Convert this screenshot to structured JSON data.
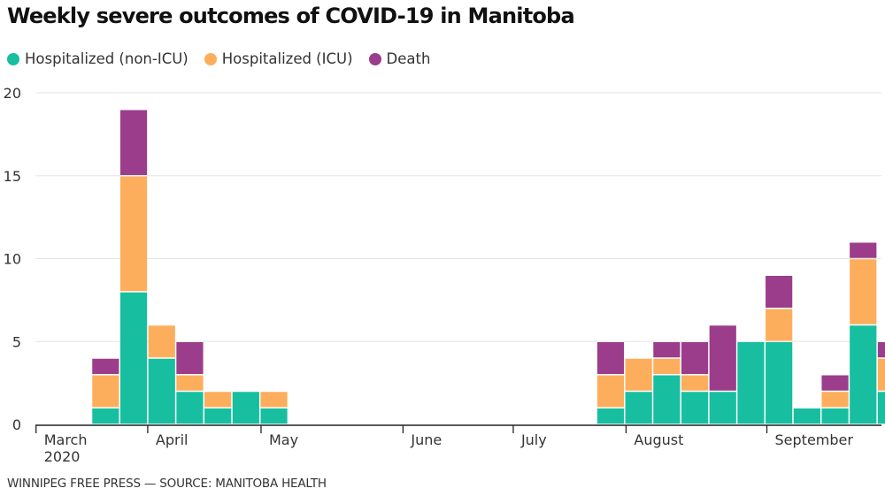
{
  "chart_data": {
    "type": "bar",
    "stacked": true,
    "title": "Weekly severe outcomes of COVID-19 in Manitoba",
    "xlabel": "",
    "ylabel": "",
    "ylim": [
      0,
      20
    ],
    "yticks": [
      0,
      5,
      10,
      15,
      20
    ],
    "grid": true,
    "legend_position": "top-left",
    "x_tick_labels": [
      {
        "label": "March",
        "sublabel": "2020",
        "week_index": -1.98
      },
      {
        "label": "April",
        "sublabel": "",
        "week_index": 2.0
      },
      {
        "label": "May",
        "sublabel": "",
        "week_index": 6.04
      },
      {
        "label": "June",
        "sublabel": "",
        "week_index": 11.1
      },
      {
        "label": "July",
        "sublabel": "",
        "week_index": 15.03
      },
      {
        "label": "August",
        "sublabel": "",
        "week_index": 19.05
      },
      {
        "label": "September",
        "sublabel": "",
        "week_index": 24.07
      }
    ],
    "week_count": 29,
    "series": [
      {
        "name": "Hospitalized (non-ICU)",
        "color": "#17bfa0",
        "values": [
          1,
          8,
          4,
          2,
          1,
          2,
          1,
          0,
          0,
          0,
          0,
          0,
          0,
          0,
          0,
          0,
          0,
          0,
          1,
          2,
          3,
          2,
          2,
          5,
          5,
          1,
          1,
          6,
          2
        ]
      },
      {
        "name": "Hospitalized (ICU)",
        "color": "#fdae5c",
        "values": [
          2,
          7,
          2,
          1,
          1,
          0,
          1,
          0,
          0,
          0,
          0,
          0,
          0,
          0,
          0,
          0,
          0,
          0,
          2,
          2,
          1,
          1,
          0,
          0,
          2,
          0,
          1,
          4,
          2
        ]
      },
      {
        "name": "Death",
        "color": "#9b3d8b",
        "values": [
          1,
          4,
          0,
          2,
          0,
          0,
          0,
          0,
          0,
          0,
          0,
          0,
          0,
          0,
          0,
          0,
          0,
          0,
          2,
          0,
          1,
          2,
          4,
          0,
          2,
          0,
          1,
          1,
          1
        ]
      }
    ]
  },
  "legend": {
    "items": [
      {
        "label": "Hospitalized (non-ICU)",
        "color": "#17bfa0"
      },
      {
        "label": "Hospitalized (ICU)",
        "color": "#fdae5c"
      },
      {
        "label": "Death",
        "color": "#9b3d8b"
      }
    ]
  },
  "footer": "WINNIPEG FREE PRESS — SOURCE: MANITOBA HEALTH"
}
